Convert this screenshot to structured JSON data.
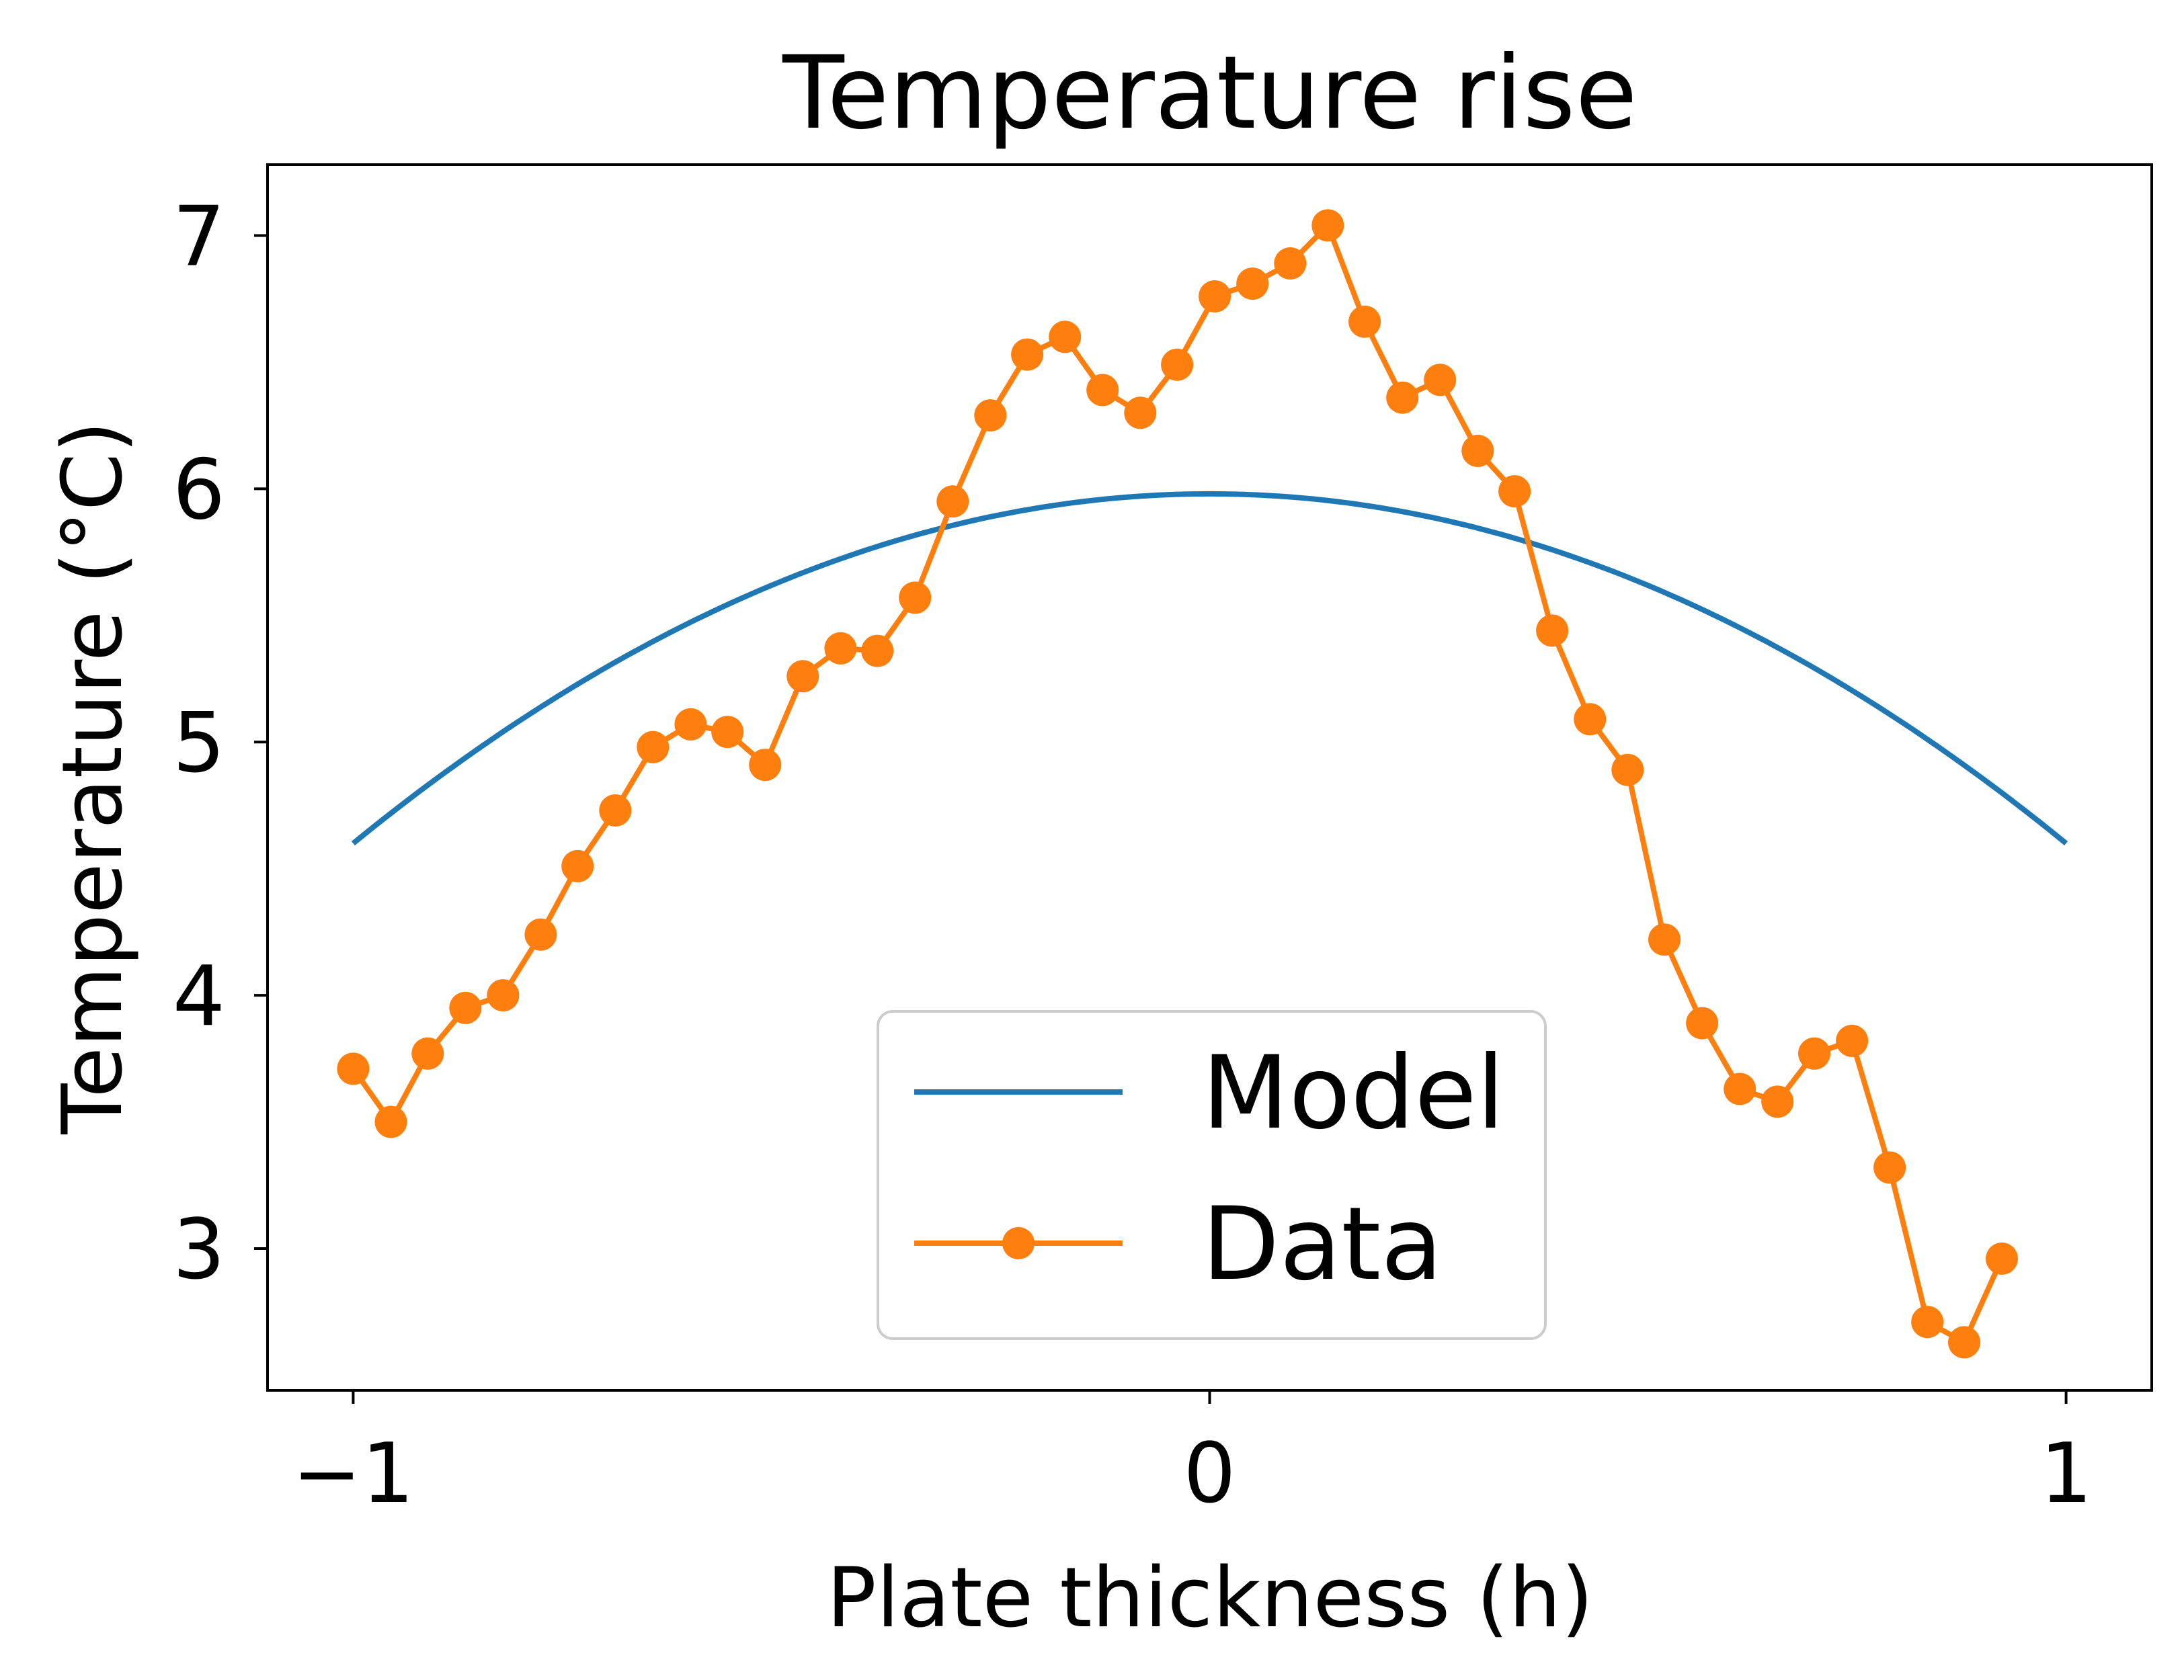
{
  "chart_data": {
    "type": "line",
    "title": "Temperature rise",
    "xlabel": "Plate thickness (h)",
    "ylabel": "Temperature (°C)",
    "xlim": [
      -1.1,
      1.1
    ],
    "ylim": [
      2.44,
      7.28
    ],
    "xticks": [
      -1,
      0,
      1
    ],
    "xtick_labels": [
      "−1",
      "0",
      "1"
    ],
    "yticks": [
      3,
      4,
      5,
      6,
      7
    ],
    "ytick_labels": [
      "3",
      "4",
      "5",
      "6",
      "7"
    ],
    "grid": false,
    "legend_position": "lower-center",
    "series": [
      {
        "name": "Model",
        "style": "line",
        "color": "#1f77b4",
        "model": {
          "form": "quadratic",
          "peak": 5.98,
          "edge": 4.6
        },
        "x_range": [
          -1,
          1
        ]
      },
      {
        "name": "Data",
        "style": "line-marker",
        "color": "#ff7f0e",
        "x": [
          -1.0,
          -0.956,
          -0.913,
          -0.869,
          -0.825,
          -0.781,
          -0.738,
          -0.694,
          -0.65,
          -0.606,
          -0.563,
          -0.519,
          -0.475,
          -0.431,
          -0.388,
          -0.344,
          -0.3,
          -0.256,
          -0.213,
          -0.169,
          -0.125,
          -0.081,
          -0.038,
          0.006,
          0.05,
          0.094,
          0.138,
          0.181,
          0.225,
          0.269,
          0.313,
          0.356,
          0.4,
          0.444,
          0.488,
          0.531,
          0.575,
          0.619,
          0.663,
          0.706,
          0.75,
          0.794,
          0.838,
          0.881,
          0.925
        ],
        "y": [
          3.71,
          3.5,
          3.77,
          3.95,
          4.0,
          4.24,
          4.51,
          4.73,
          4.98,
          5.07,
          5.04,
          4.91,
          5.26,
          5.37,
          5.36,
          5.57,
          5.95,
          6.29,
          6.53,
          6.6,
          6.39,
          6.3,
          6.49,
          6.76,
          6.81,
          6.89,
          7.04,
          6.66,
          6.36,
          6.43,
          6.15,
          5.99,
          5.44,
          5.09,
          4.89,
          4.22,
          3.89,
          3.63,
          3.58,
          3.77,
          3.82,
          3.32,
          2.71,
          2.63,
          2.96
        ]
      }
    ]
  }
}
